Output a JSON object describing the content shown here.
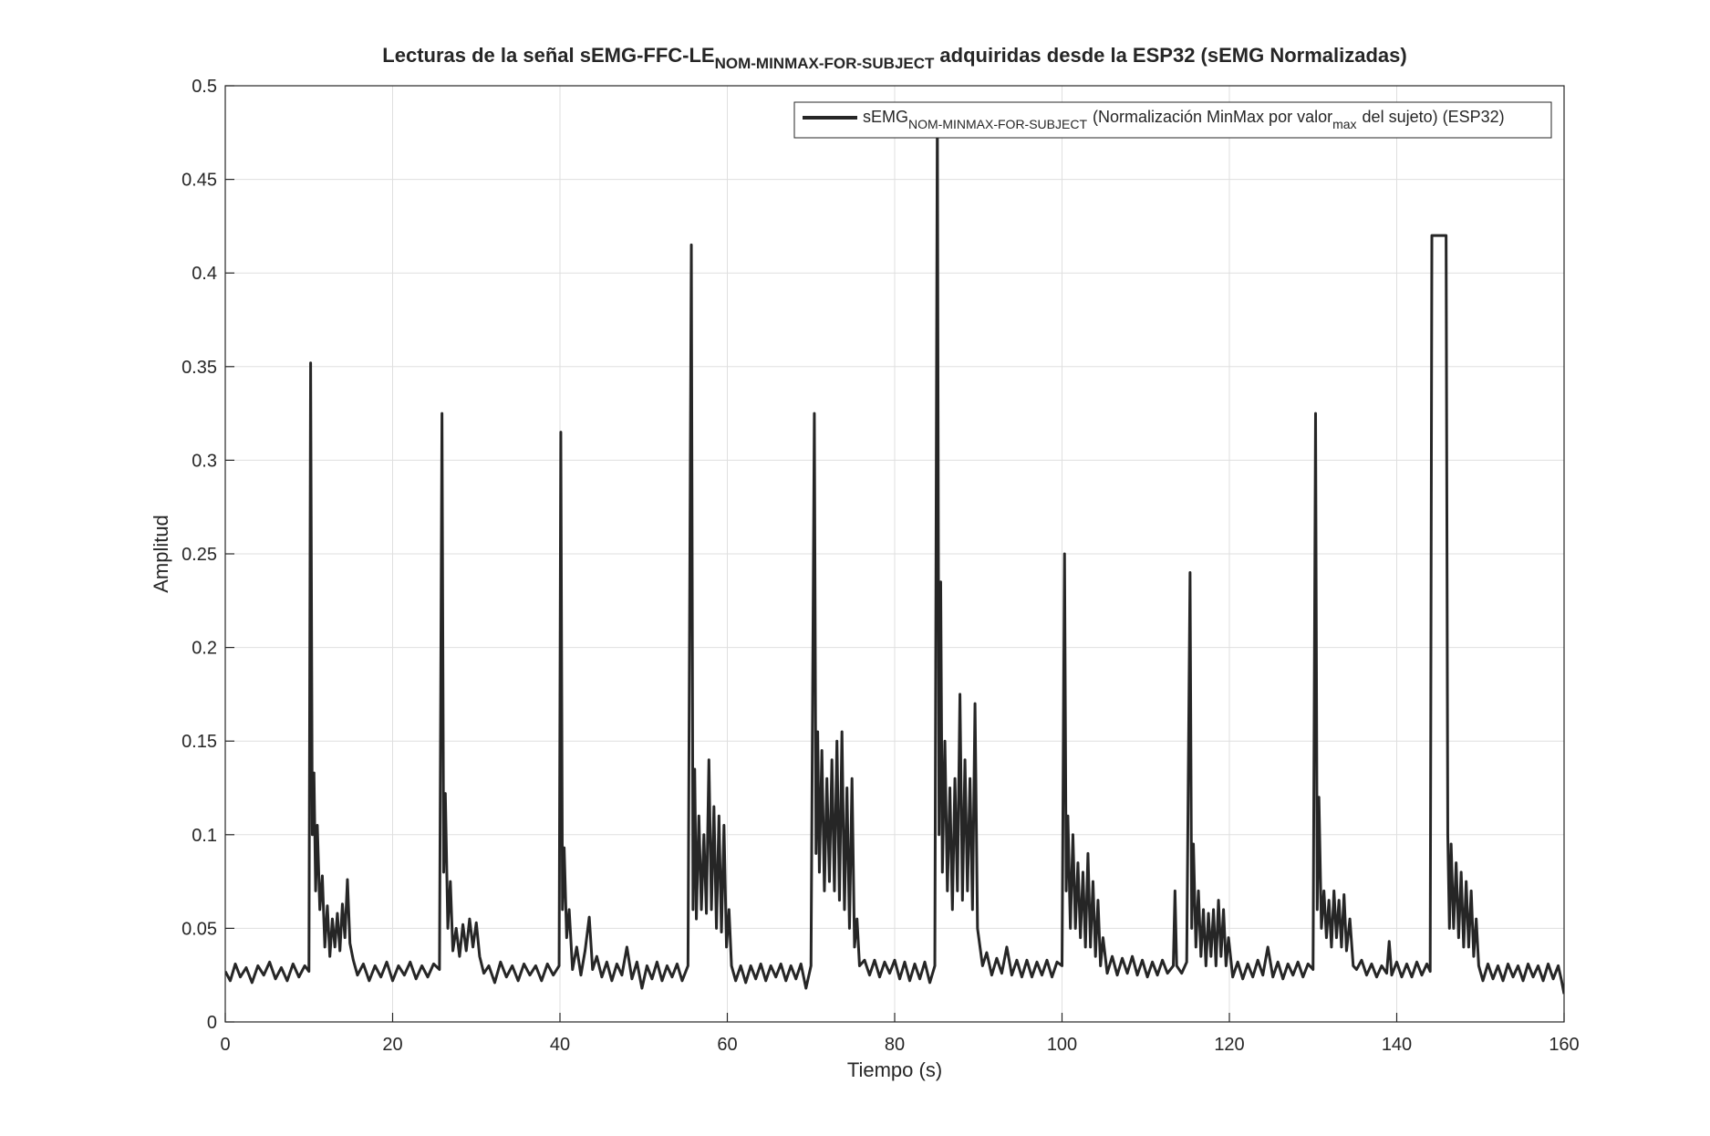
{
  "chart_data": {
    "type": "line",
    "title": [
      "Lecturas de la señal sEMG-FFC-LE",
      "NOM-MINMAX-FOR-SUBJECT",
      "adquiridas desde la ESP32 (sEMG Normalizadas)"
    ],
    "xlabel": "Tiempo (s)",
    "ylabel": "Amplitud",
    "xlim": [
      0,
      160
    ],
    "xticks": [
      0,
      20,
      40,
      60,
      80,
      100,
      120,
      140,
      160
    ],
    "ylim": [
      0,
      0.5
    ],
    "yticks": [
      0,
      0.05,
      0.1,
      0.15,
      0.2,
      0.25,
      0.3,
      0.35,
      0.4,
      0.45,
      0.5
    ],
    "grid": true,
    "legend": "top-right",
    "x": [
      0,
      0.6,
      1.2,
      1.8,
      2.5,
      3.2,
      3.9,
      4.6,
      5.3,
      6,
      6.7,
      7.4,
      8.1,
      8.8,
      9.5,
      10,
      10.2,
      10.4,
      10.6,
      10.8,
      11,
      11.3,
      11.6,
      11.9,
      12.2,
      12.5,
      12.8,
      13.1,
      13.4,
      13.7,
      14,
      14.3,
      14.6,
      14.9,
      15.3,
      15.8,
      16.5,
      17.2,
      17.9,
      18.6,
      19.3,
      20,
      20.7,
      21.4,
      22.1,
      22.8,
      23.5,
      24.2,
      24.9,
      25.6,
      25.9,
      26.1,
      26.3,
      26.6,
      26.9,
      27.2,
      27.6,
      28,
      28.4,
      28.8,
      29.2,
      29.6,
      30,
      30.4,
      30.9,
      31.5,
      32.2,
      32.9,
      33.6,
      34.3,
      35,
      35.7,
      36.4,
      37.1,
      37.8,
      38.5,
      39.2,
      39.9,
      40.1,
      40.3,
      40.5,
      40.8,
      41.1,
      41.5,
      42,
      42.5,
      43,
      43.5,
      43.9,
      44.4,
      45,
      45.6,
      46.2,
      46.8,
      47.4,
      48,
      48.6,
      49.2,
      49.8,
      50.4,
      51,
      51.6,
      52.2,
      52.8,
      53.4,
      54,
      54.6,
      55.3,
      55.7,
      55.9,
      56.1,
      56.3,
      56.6,
      56.9,
      57.2,
      57.5,
      57.8,
      58.1,
      58.4,
      58.7,
      59,
      59.3,
      59.6,
      59.9,
      60.2,
      60.5,
      61,
      61.6,
      62.2,
      62.8,
      63.4,
      64,
      64.6,
      65.2,
      65.8,
      66.4,
      67,
      67.6,
      68.2,
      68.8,
      69.4,
      70,
      70.4,
      70.6,
      70.8,
      71,
      71.3,
      71.6,
      71.9,
      72.2,
      72.5,
      72.8,
      73.1,
      73.4,
      73.7,
      74,
      74.3,
      74.6,
      74.9,
      75.2,
      75.5,
      75.8,
      76.4,
      77,
      77.6,
      78.2,
      78.8,
      79.4,
      80,
      80.6,
      81.2,
      81.8,
      82.4,
      83,
      83.6,
      84.2,
      84.8,
      85.1,
      85.3,
      85.5,
      85.7,
      86,
      86.3,
      86.6,
      86.9,
      87.2,
      87.5,
      87.8,
      88.1,
      88.4,
      88.7,
      89,
      89.3,
      89.6,
      89.9,
      90.2,
      90.5,
      91,
      91.6,
      92.2,
      92.8,
      93.4,
      94,
      94.6,
      95.2,
      95.8,
      96.4,
      97,
      97.6,
      98.2,
      98.8,
      99.4,
      100,
      100.3,
      100.5,
      100.7,
      101,
      101.3,
      101.6,
      101.9,
      102.2,
      102.5,
      102.8,
      103.1,
      103.4,
      103.7,
      104,
      104.3,
      104.6,
      104.9,
      105.4,
      106,
      106.6,
      107.2,
      107.8,
      108.4,
      109,
      109.6,
      110.2,
      110.8,
      111.4,
      112,
      112.6,
      113.3,
      113.5,
      113.7,
      114.3,
      114.9,
      115.3,
      115.5,
      115.7,
      116,
      116.3,
      116.6,
      116.9,
      117.2,
      117.5,
      117.8,
      118.1,
      118.4,
      118.7,
      119,
      119.3,
      119.6,
      119.9,
      120.4,
      121,
      121.6,
      122.2,
      122.8,
      123.4,
      124,
      124.6,
      125.2,
      125.8,
      126.4,
      127,
      127.6,
      128.2,
      128.8,
      129.4,
      130,
      130.3,
      130.5,
      130.7,
      131,
      131.3,
      131.6,
      131.9,
      132.2,
      132.5,
      132.8,
      133.1,
      133.4,
      133.7,
      134,
      134.4,
      134.8,
      135.2,
      135.8,
      136.4,
      137,
      137.6,
      138.2,
      138.8,
      139.1,
      139.4,
      140,
      140.6,
      141.2,
      141.8,
      142.4,
      143,
      143.6,
      144,
      144.2,
      145.9,
      146.1,
      146.3,
      146.5,
      146.8,
      147.1,
      147.4,
      147.7,
      148,
      148.3,
      148.6,
      148.9,
      149.2,
      149.5,
      149.8,
      150.3,
      150.9,
      151.5,
      152.1,
      152.7,
      153.3,
      153.9,
      154.5,
      155.1,
      155.7,
      156.3,
      156.9,
      157.5,
      158.1,
      158.7,
      159.3,
      159.7,
      160
    ],
    "series": [
      {
        "name": [
          "sEMG",
          "NOM-MINMAX-FOR-SUBJECT",
          "(Normalización MinMax por valor",
          "max",
          "del sujeto) (ESP32)"
        ],
        "color": "#262626",
        "values": [
          0.027,
          0.022,
          0.031,
          0.024,
          0.029,
          0.021,
          0.03,
          0.025,
          0.032,
          0.023,
          0.029,
          0.022,
          0.031,
          0.024,
          0.03,
          0.027,
          0.352,
          0.1,
          0.133,
          0.07,
          0.105,
          0.06,
          0.078,
          0.04,
          0.062,
          0.035,
          0.055,
          0.04,
          0.058,
          0.038,
          0.063,
          0.045,
          0.076,
          0.042,
          0.033,
          0.025,
          0.031,
          0.022,
          0.03,
          0.024,
          0.032,
          0.022,
          0.03,
          0.025,
          0.032,
          0.023,
          0.03,
          0.024,
          0.031,
          0.028,
          0.325,
          0.08,
          0.122,
          0.05,
          0.075,
          0.038,
          0.05,
          0.035,
          0.052,
          0.038,
          0.055,
          0.04,
          0.053,
          0.035,
          0.026,
          0.03,
          0.021,
          0.032,
          0.024,
          0.03,
          0.022,
          0.031,
          0.025,
          0.03,
          0.022,
          0.031,
          0.025,
          0.03,
          0.315,
          0.06,
          0.093,
          0.045,
          0.06,
          0.028,
          0.04,
          0.025,
          0.038,
          0.056,
          0.028,
          0.035,
          0.024,
          0.032,
          0.022,
          0.031,
          0.025,
          0.04,
          0.023,
          0.032,
          0.018,
          0.03,
          0.023,
          0.032,
          0.022,
          0.03,
          0.024,
          0.031,
          0.022,
          0.03,
          0.415,
          0.06,
          0.135,
          0.055,
          0.11,
          0.06,
          0.1,
          0.058,
          0.14,
          0.06,
          0.115,
          0.05,
          0.11,
          0.048,
          0.105,
          0.04,
          0.06,
          0.03,
          0.022,
          0.03,
          0.021,
          0.03,
          0.023,
          0.031,
          0.022,
          0.03,
          0.024,
          0.031,
          0.022,
          0.03,
          0.023,
          0.031,
          0.018,
          0.03,
          0.325,
          0.09,
          0.155,
          0.08,
          0.145,
          0.07,
          0.13,
          0.075,
          0.14,
          0.07,
          0.15,
          0.065,
          0.155,
          0.06,
          0.125,
          0.05,
          0.13,
          0.04,
          0.055,
          0.03,
          0.033,
          0.025,
          0.033,
          0.024,
          0.032,
          0.026,
          0.033,
          0.023,
          0.032,
          0.022,
          0.031,
          0.023,
          0.032,
          0.021,
          0.03,
          0.49,
          0.1,
          0.235,
          0.08,
          0.15,
          0.07,
          0.125,
          0.06,
          0.13,
          0.07,
          0.175,
          0.065,
          0.14,
          0.07,
          0.13,
          0.06,
          0.17,
          0.05,
          0.04,
          0.03,
          0.037,
          0.025,
          0.034,
          0.026,
          0.04,
          0.025,
          0.033,
          0.024,
          0.033,
          0.024,
          0.032,
          0.025,
          0.033,
          0.024,
          0.032,
          0.03,
          0.25,
          0.07,
          0.11,
          0.05,
          0.1,
          0.05,
          0.085,
          0.045,
          0.08,
          0.04,
          0.09,
          0.04,
          0.075,
          0.035,
          0.065,
          0.03,
          0.045,
          0.026,
          0.035,
          0.025,
          0.034,
          0.026,
          0.035,
          0.025,
          0.033,
          0.024,
          0.032,
          0.025,
          0.033,
          0.026,
          0.03,
          0.07,
          0.03,
          0.026,
          0.032,
          0.24,
          0.05,
          0.095,
          0.04,
          0.07,
          0.035,
          0.06,
          0.03,
          0.058,
          0.035,
          0.06,
          0.03,
          0.065,
          0.035,
          0.06,
          0.03,
          0.045,
          0.024,
          0.032,
          0.023,
          0.031,
          0.024,
          0.033,
          0.025,
          0.04,
          0.024,
          0.032,
          0.023,
          0.031,
          0.025,
          0.032,
          0.024,
          0.031,
          0.028,
          0.325,
          0.06,
          0.12,
          0.05,
          0.07,
          0.045,
          0.065,
          0.04,
          0.07,
          0.045,
          0.065,
          0.04,
          0.068,
          0.038,
          0.055,
          0.03,
          0.028,
          0.033,
          0.025,
          0.031,
          0.024,
          0.03,
          0.026,
          0.043,
          0.025,
          0.032,
          0.024,
          0.031,
          0.024,
          0.032,
          0.025,
          0.031,
          0.027,
          0.42,
          0.42,
          0.1,
          0.05,
          0.095,
          0.05,
          0.085,
          0.045,
          0.08,
          0.04,
          0.075,
          0.04,
          0.07,
          0.035,
          0.055,
          0.03,
          0.022,
          0.031,
          0.023,
          0.03,
          0.022,
          0.031,
          0.024,
          0.03,
          0.022,
          0.031,
          0.024,
          0.03,
          0.022,
          0.031,
          0.023,
          0.03,
          0.022,
          0.015
        ]
      }
    ]
  }
}
